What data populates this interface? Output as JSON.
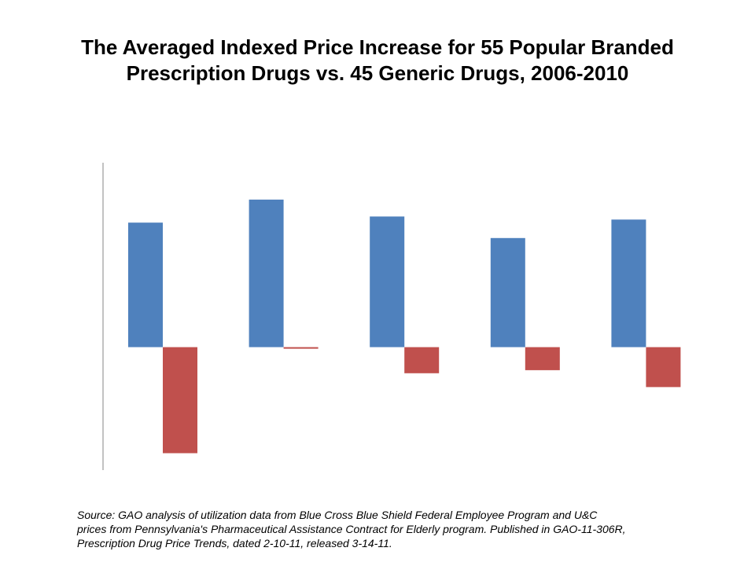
{
  "title": {
    "line1": "The Averaged Indexed Price Increase for 55 Popular Branded",
    "line2": "Prescription Drugs vs. 45 Generic Drugs, 2006-2010"
  },
  "chart_data": {
    "type": "bar",
    "title": "The Averaged Indexed Price Increase for 55 Popular Branded Prescription Drugs vs. 45 Generic Drugs, 2006-2010",
    "categories": [
      "",
      "",
      "",
      "",
      ""
    ],
    "series": [
      {
        "color": "#4F81BD",
        "values": [
          8.1,
          9.6,
          8.5,
          7.1,
          8.3
        ]
      },
      {
        "color": "#C0504D",
        "values": [
          -6.9,
          -0.1,
          -1.7,
          -1.5,
          -2.6
        ]
      }
    ],
    "xlabel": "",
    "ylabel": "",
    "ylim": [
      -8.0,
      12.0
    ],
    "grid": false,
    "legend": "none"
  },
  "source": {
    "line1": "Source: GAO analysis of utilization data from Blue Cross Blue Shield Federal Employee Program and U&C",
    "line2": "prices  from  Pennsylvania's Pharmaceutical Assistance Contract for Elderly program. Published in GAO-11-306R,",
    "line3": "Prescription Drug Price Trends, dated 2-10-11, released 3-14-11."
  }
}
